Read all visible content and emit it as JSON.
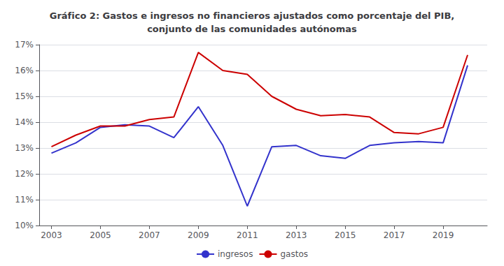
{
  "chart_data": {
    "type": "line",
    "title": "Gráfico 2: Gastos e ingresos no financieros ajustados como porcentaje del PIB,\nconjunto de las comunidades autónomas",
    "x": [
      2003,
      2004,
      2005,
      2006,
      2007,
      2008,
      2009,
      2010,
      2011,
      2012,
      2013,
      2014,
      2015,
      2016,
      2017,
      2018,
      2019,
      2020
    ],
    "series": [
      {
        "name": "ingresos",
        "color": "#3333cc",
        "values": [
          12.8,
          13.2,
          13.8,
          13.9,
          13.85,
          13.4,
          14.6,
          13.1,
          10.75,
          13.05,
          13.1,
          12.7,
          12.6,
          13.1,
          13.2,
          13.25,
          13.2,
          16.2
        ]
      },
      {
        "name": "gastos",
        "color": "#cc0000",
        "values": [
          13.05,
          13.5,
          13.85,
          13.85,
          14.1,
          14.2,
          16.7,
          16.0,
          15.85,
          15.0,
          14.5,
          14.25,
          14.3,
          14.2,
          13.6,
          13.55,
          13.8,
          16.6
        ]
      }
    ],
    "xlim": [
      2002.5,
      2020.8
    ],
    "xticks": [
      2003,
      2005,
      2007,
      2009,
      2011,
      2013,
      2015,
      2017,
      2019
    ],
    "ylim": [
      10,
      17
    ],
    "yticks": [
      {
        "value": 10,
        "label": "10%"
      },
      {
        "value": 11,
        "label": "11%"
      },
      {
        "value": 12,
        "label": "12%"
      },
      {
        "value": 13,
        "label": "13%"
      },
      {
        "value": 14,
        "label": "14%"
      },
      {
        "value": 15,
        "label": "15%"
      },
      {
        "value": 16,
        "label": "16%"
      },
      {
        "value": 17,
        "label": "17%"
      }
    ],
    "grid": true,
    "legend": "bottom"
  }
}
